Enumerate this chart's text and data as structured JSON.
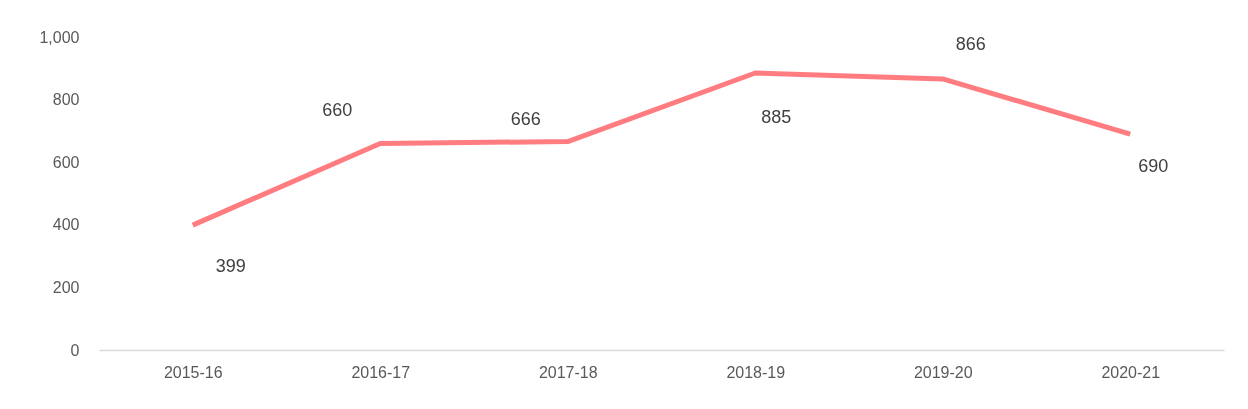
{
  "chart_data": {
    "type": "line",
    "categories": [
      "2015-16",
      "2016-17",
      "2017-18",
      "2018-19",
      "2019-20",
      "2020-21"
    ],
    "series": [
      {
        "color": "#ff7c80",
        "values": [
          399,
          660,
          666,
          885,
          866,
          690
        ]
      }
    ],
    "ylim": [
      0,
      1000
    ],
    "yticks": [
      0,
      200,
      400,
      600,
      800,
      {
        "value": 1000,
        "label": "1,000"
      }
    ],
    "grid": false,
    "marker": "none",
    "line_style": "solid",
    "data_labels": true
  }
}
